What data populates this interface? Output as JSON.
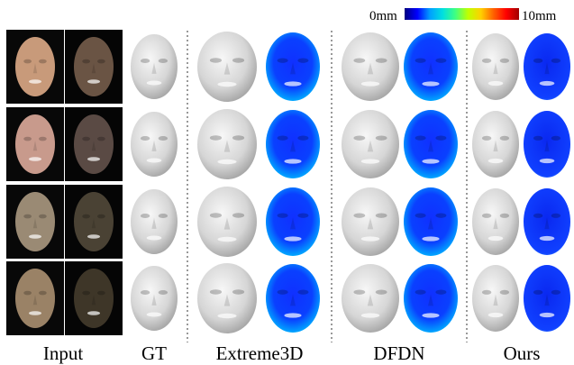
{
  "columns": [
    "Input",
    "GT",
    "Extreme3D",
    "DFDN",
    "Ours"
  ],
  "colorbar": {
    "min_label": "0mm",
    "max_label": "10mm",
    "colors": [
      "#000080",
      "#0000ff",
      "#00a0ff",
      "#00e0e0",
      "#40ff80",
      "#c0ff00",
      "#ffd000",
      "#ff6000",
      "#ff0000",
      "#a00000"
    ]
  },
  "rows": [
    {
      "name": "row-1",
      "input_tone": "#c89a7a",
      "shadow_tone": "#6a5444"
    },
    {
      "name": "row-2",
      "input_tone": "#c89a8c",
      "shadow_tone": "#5a4a44"
    },
    {
      "name": "row-3",
      "input_tone": "#9a8a74",
      "shadow_tone": "#4a4234"
    },
    {
      "name": "row-4",
      "input_tone": "#9a8266",
      "shadow_tone": "#3e3628"
    }
  ],
  "colors": {
    "mesh_light": "#ececec",
    "mesh_shade": "#9a9a9a",
    "err_base": "#1030ff",
    "err_mid": "#00b8ff",
    "err_hot": "#70ff40",
    "separator": "#333333"
  }
}
